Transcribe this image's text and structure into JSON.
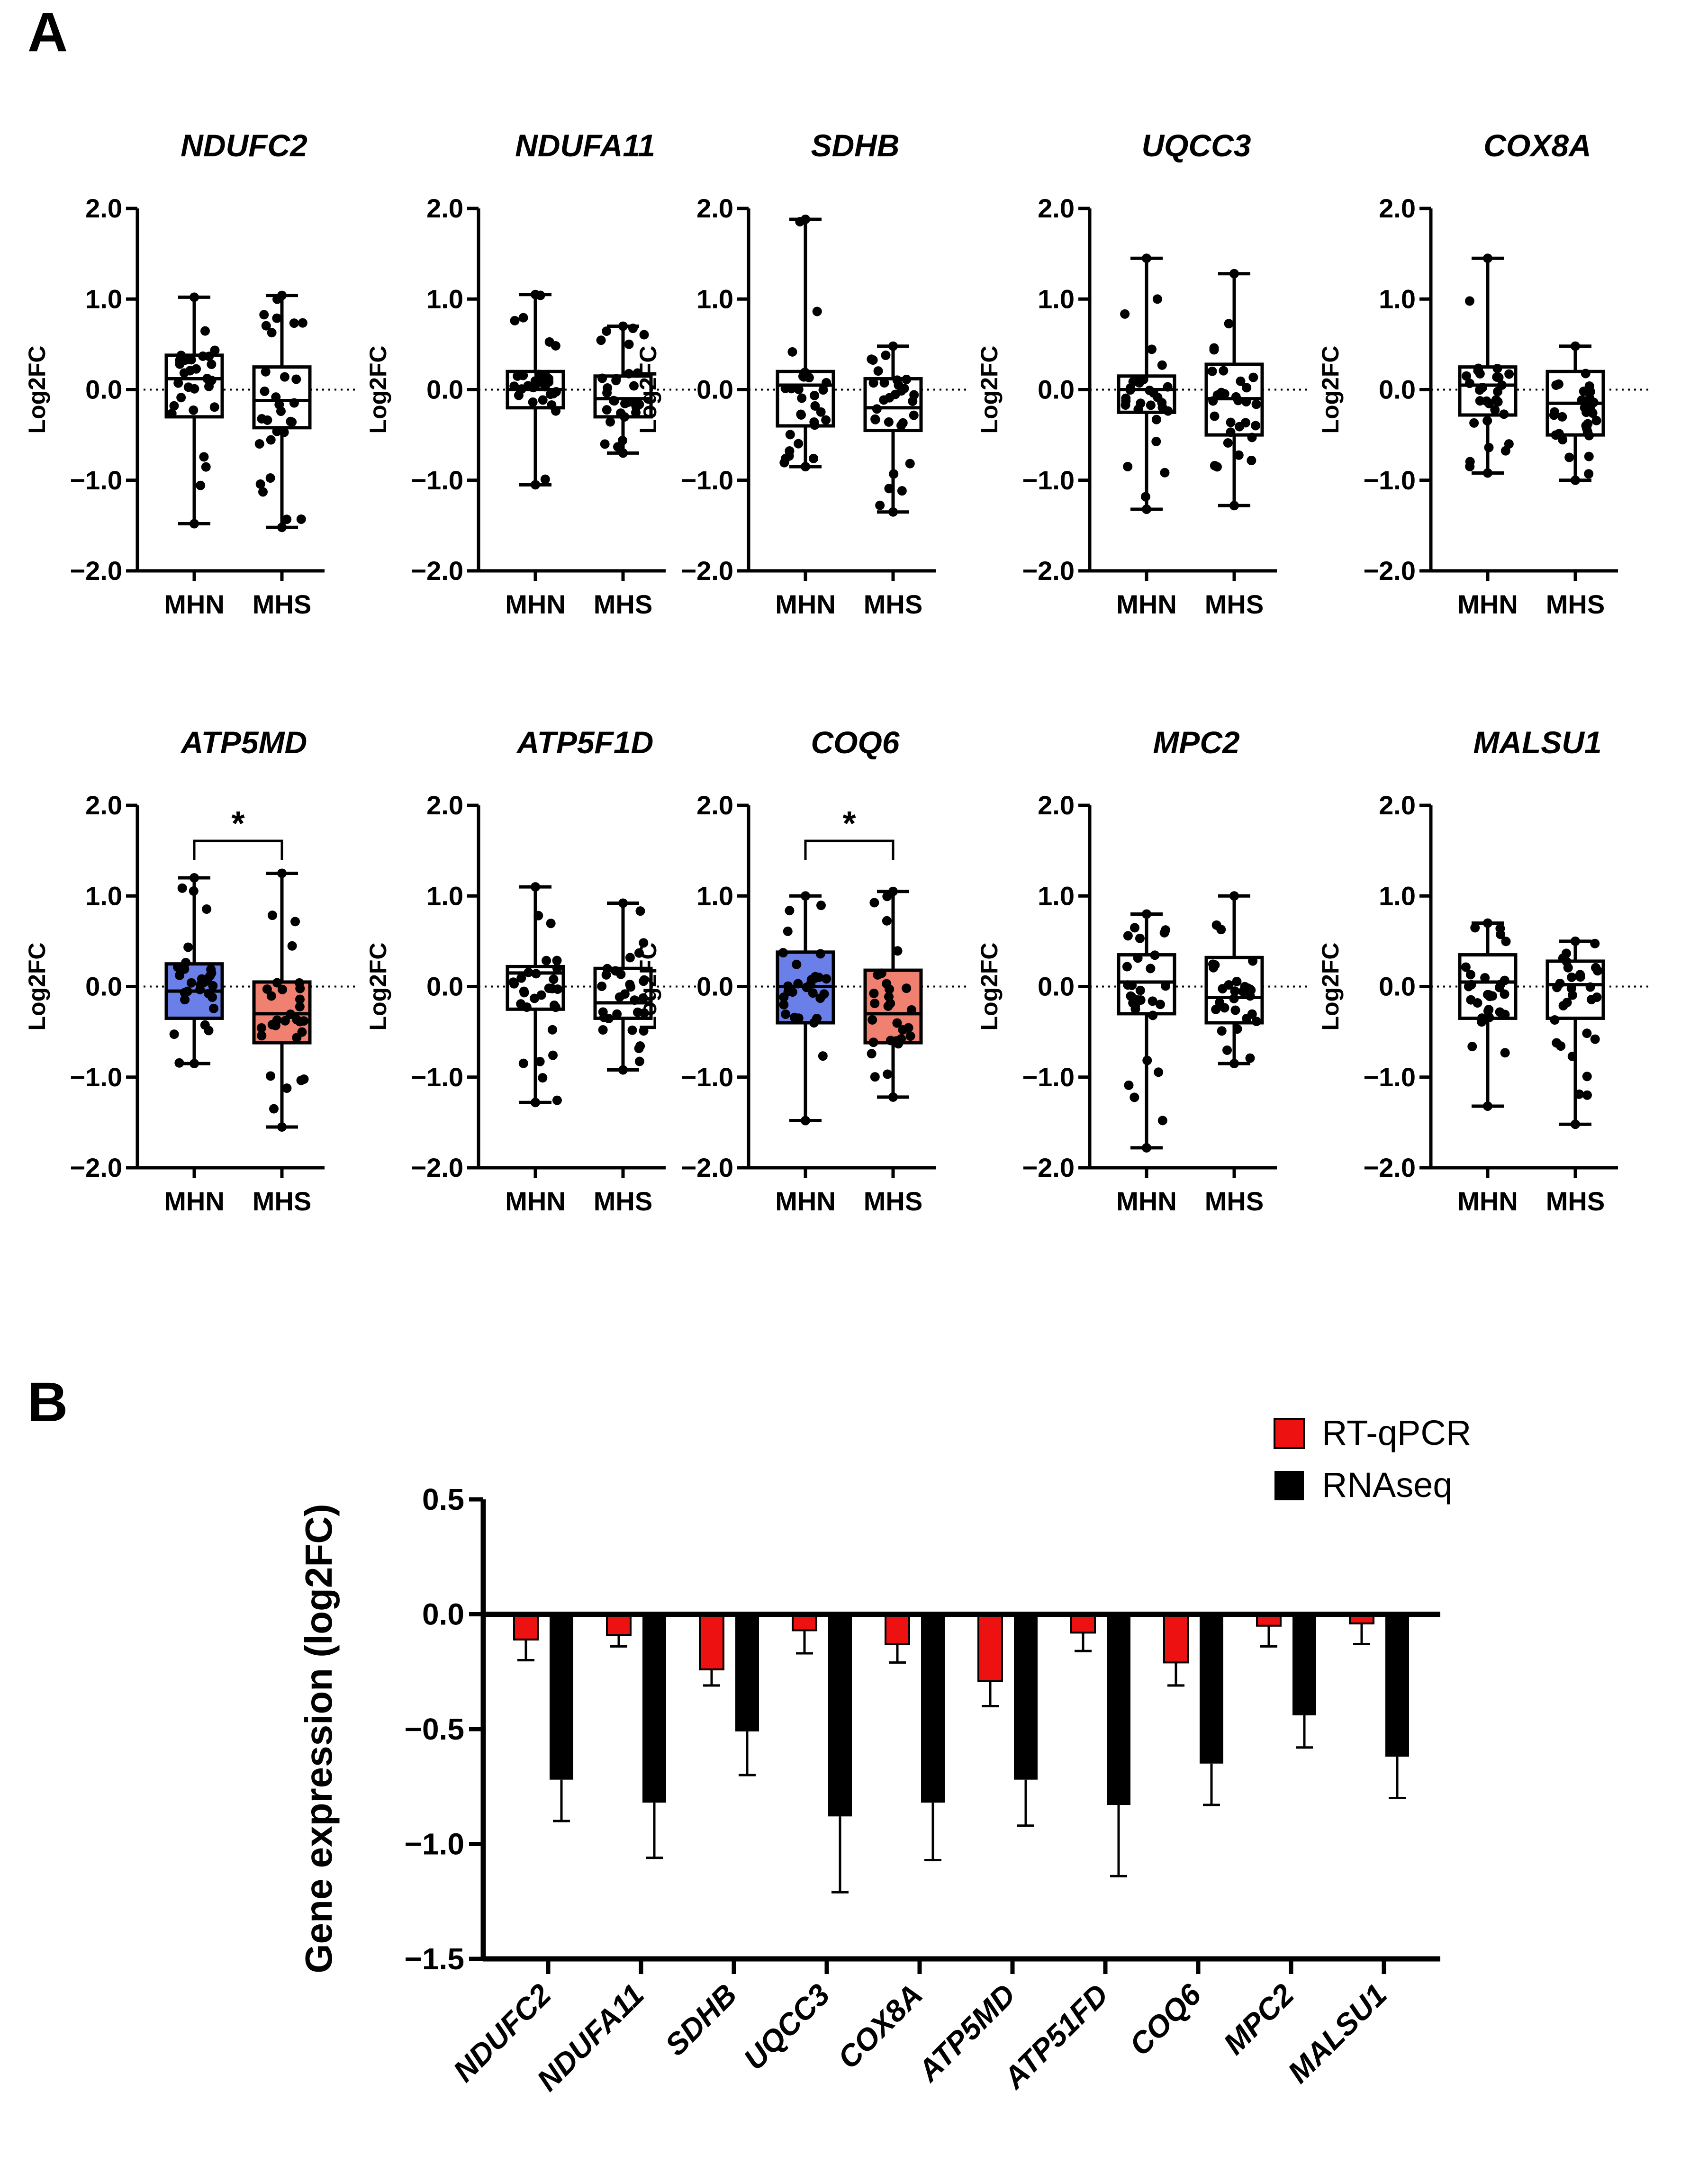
{
  "panels": {
    "a_label": "A",
    "b_label": "B"
  },
  "colors": {
    "mhn_highlight": "#6a7fe8",
    "mhs_highlight": "#f08070",
    "rtqpcr": "#ee1111",
    "rnaseq": "#000000"
  },
  "chart_data": [
    {
      "type": "box",
      "title": "NDUFC2",
      "ylabel": "Log2FC",
      "ylim": [
        -2.0,
        2.0
      ],
      "yticks": [
        "2.0",
        "1.0",
        "0.0",
        "−1.0",
        "−2.0"
      ],
      "categories": [
        "MHN",
        "MHS"
      ],
      "groups": [
        {
          "name": "MHN",
          "min": -1.48,
          "q1": -0.3,
          "median": 0.12,
          "q3": 0.38,
          "max": 1.02,
          "fill": "none"
        },
        {
          "name": "MHS",
          "min": -1.52,
          "q1": -0.42,
          "median": -0.12,
          "q3": 0.25,
          "max": 1.04,
          "fill": "none"
        }
      ],
      "significance": ""
    },
    {
      "type": "box",
      "title": "NDUFA11",
      "ylabel": "Log2FC",
      "ylim": [
        -2.0,
        2.0
      ],
      "yticks": [
        "2.0",
        "1.0",
        "0.0",
        "−1.0",
        "−2.0"
      ],
      "categories": [
        "MHN",
        "MHS"
      ],
      "groups": [
        {
          "name": "MHN",
          "min": -1.05,
          "q1": -0.2,
          "median": 0.0,
          "q3": 0.2,
          "max": 1.05,
          "fill": "none"
        },
        {
          "name": "MHS",
          "min": -0.7,
          "q1": -0.3,
          "median": -0.1,
          "q3": 0.15,
          "max": 0.7,
          "fill": "none"
        }
      ],
      "significance": ""
    },
    {
      "type": "box",
      "title": "SDHB",
      "ylabel": "Log2FC",
      "ylim": [
        -2.0,
        2.0
      ],
      "yticks": [
        "2.0",
        "1.0",
        "0.0",
        "−1.0",
        "−2.0"
      ],
      "categories": [
        "MHN",
        "MHS"
      ],
      "groups": [
        {
          "name": "MHN",
          "min": -0.85,
          "q1": -0.4,
          "median": 0.05,
          "q3": 0.2,
          "max": 1.88,
          "fill": "none"
        },
        {
          "name": "MHS",
          "min": -1.35,
          "q1": -0.45,
          "median": -0.2,
          "q3": 0.12,
          "max": 0.48,
          "fill": "none"
        }
      ],
      "significance": ""
    },
    {
      "type": "box",
      "title": "UQCC3",
      "ylabel": "Log2FC",
      "ylim": [
        -2.0,
        2.0
      ],
      "yticks": [
        "2.0",
        "1.0",
        "0.0",
        "−1.0",
        "−2.0"
      ],
      "categories": [
        "MHN",
        "MHS"
      ],
      "groups": [
        {
          "name": "MHN",
          "min": -1.32,
          "q1": -0.25,
          "median": 0.0,
          "q3": 0.15,
          "max": 1.45,
          "fill": "none"
        },
        {
          "name": "MHS",
          "min": -1.28,
          "q1": -0.5,
          "median": -0.1,
          "q3": 0.28,
          "max": 1.28,
          "fill": "none"
        }
      ],
      "significance": ""
    },
    {
      "type": "box",
      "title": "COX8A",
      "ylabel": "Log2FC",
      "ylim": [
        -2.0,
        2.0
      ],
      "yticks": [
        "2.0",
        "1.0",
        "0.0",
        "−1.0",
        "−2.0"
      ],
      "categories": [
        "MHN",
        "MHS"
      ],
      "groups": [
        {
          "name": "MHN",
          "min": -0.92,
          "q1": -0.28,
          "median": 0.05,
          "q3": 0.25,
          "max": 1.45,
          "fill": "none"
        },
        {
          "name": "MHS",
          "min": -1.0,
          "q1": -0.5,
          "median": -0.15,
          "q3": 0.2,
          "max": 0.48,
          "fill": "none"
        }
      ],
      "significance": ""
    },
    {
      "type": "box",
      "title": "ATP5MD",
      "ylabel": "Log2FC",
      "ylim": [
        -2.0,
        2.0
      ],
      "yticks": [
        "2.0",
        "1.0",
        "0.0",
        "−1.0",
        "−2.0"
      ],
      "categories": [
        "MHN",
        "MHS"
      ],
      "groups": [
        {
          "name": "MHN",
          "min": -0.85,
          "q1": -0.35,
          "median": -0.05,
          "q3": 0.25,
          "max": 1.2,
          "fill": "mhn"
        },
        {
          "name": "MHS",
          "min": -1.55,
          "q1": -0.62,
          "median": -0.3,
          "q3": 0.05,
          "max": 1.25,
          "fill": "mhs"
        }
      ],
      "significance": "*"
    },
    {
      "type": "box",
      "title": "ATP5F1D",
      "ylabel": "Log2FC",
      "ylim": [
        -2.0,
        2.0
      ],
      "yticks": [
        "2.0",
        "1.0",
        "0.0",
        "−1.0",
        "−2.0"
      ],
      "categories": [
        "MHN",
        "MHS"
      ],
      "groups": [
        {
          "name": "MHN",
          "min": -1.28,
          "q1": -0.25,
          "median": 0.15,
          "q3": 0.22,
          "max": 1.1,
          "fill": "none"
        },
        {
          "name": "MHS",
          "min": -0.92,
          "q1": -0.35,
          "median": -0.18,
          "q3": 0.2,
          "max": 0.92,
          "fill": "none"
        }
      ],
      "significance": ""
    },
    {
      "type": "box",
      "title": "COQ6",
      "ylabel": "Log2FC",
      "ylim": [
        -2.0,
        2.0
      ],
      "yticks": [
        "2.0",
        "1.0",
        "0.0",
        "−1.0",
        "−2.0"
      ],
      "categories": [
        "MHN",
        "MHS"
      ],
      "groups": [
        {
          "name": "MHN",
          "min": -1.48,
          "q1": -0.4,
          "median": 0.0,
          "q3": 0.38,
          "max": 1.0,
          "fill": "mhn"
        },
        {
          "name": "MHS",
          "min": -1.22,
          "q1": -0.62,
          "median": -0.3,
          "q3": 0.18,
          "max": 1.05,
          "fill": "mhs"
        }
      ],
      "significance": "*"
    },
    {
      "type": "box",
      "title": "MPC2",
      "ylabel": "Log2FC",
      "ylim": [
        -2.0,
        2.0
      ],
      "yticks": [
        "2.0",
        "1.0",
        "0.0",
        "−1.0",
        "−2.0"
      ],
      "categories": [
        "MHN",
        "MHS"
      ],
      "groups": [
        {
          "name": "MHN",
          "min": -1.78,
          "q1": -0.3,
          "median": 0.05,
          "q3": 0.35,
          "max": 0.8,
          "fill": "none"
        },
        {
          "name": "MHS",
          "min": -0.85,
          "q1": -0.4,
          "median": -0.12,
          "q3": 0.32,
          "max": 1.0,
          "fill": "none"
        }
      ],
      "significance": ""
    },
    {
      "type": "box",
      "title": "MALSU1",
      "ylabel": "Log2FC",
      "ylim": [
        -2.0,
        2.0
      ],
      "yticks": [
        "2.0",
        "1.0",
        "0.0",
        "−1.0",
        "−2.0"
      ],
      "categories": [
        "MHN",
        "MHS"
      ],
      "groups": [
        {
          "name": "MHN",
          "min": -1.32,
          "q1": -0.35,
          "median": 0.05,
          "q3": 0.35,
          "max": 0.7,
          "fill": "none"
        },
        {
          "name": "MHS",
          "min": -1.52,
          "q1": -0.35,
          "median": 0.02,
          "q3": 0.28,
          "max": 0.5,
          "fill": "none"
        }
      ],
      "significance": ""
    },
    {
      "type": "bar",
      "ylabel": "Gene expression (log2FC)",
      "ylim": [
        -1.5,
        0.5
      ],
      "yticks": [
        "0.5",
        "0.0",
        "−0.5",
        "−1.0",
        "−1.5"
      ],
      "categories": [
        "NDUFC2",
        "NDUFA11",
        "SDHB",
        "UQCC3",
        "COX8A",
        "ATP5MD",
        "ATP51FD",
        "COQ6",
        "MPC2",
        "MALSU1"
      ],
      "series": [
        {
          "name": "RT-qPCR",
          "values": [
            -0.11,
            -0.09,
            -0.24,
            -0.07,
            -0.13,
            -0.29,
            -0.08,
            -0.21,
            -0.05,
            -0.04
          ],
          "errors": [
            0.09,
            0.05,
            0.07,
            0.1,
            0.08,
            0.11,
            0.08,
            0.1,
            0.09,
            0.09
          ]
        },
        {
          "name": "RNAseq",
          "values": [
            -0.72,
            -0.82,
            -0.51,
            -0.88,
            -0.82,
            -0.72,
            -0.83,
            -0.65,
            -0.44,
            -0.62
          ],
          "errors": [
            0.18,
            0.24,
            0.19,
            0.33,
            0.25,
            0.2,
            0.31,
            0.18,
            0.14,
            0.18
          ]
        }
      ]
    }
  ]
}
